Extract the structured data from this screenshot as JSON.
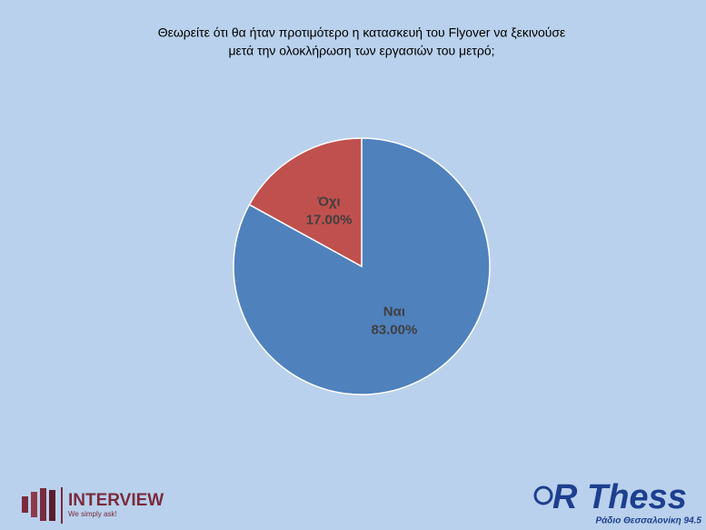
{
  "chart_data": {
    "type": "pie",
    "title": [
      "Θεωρείτε ότι θα ήταν προτιμότερο η κατασκευή του Flyover να ξεκινούσε",
      "μετά την ολοκλήρωση των εργασιών του μετρό;"
    ],
    "categories": [
      "Ναι",
      "Όχι"
    ],
    "values": [
      83,
      17
    ],
    "value_labels": [
      "83.00%",
      "17.00%"
    ],
    "colors": [
      "#4f81bd",
      "#c0504d"
    ]
  },
  "logos": {
    "left": {
      "name": "INTERVIEW",
      "tagline": "We simply ask!"
    },
    "right": {
      "name": "R Thess",
      "tagline": "Ράδιο Θεσσαλονίκη 94.5"
    }
  }
}
